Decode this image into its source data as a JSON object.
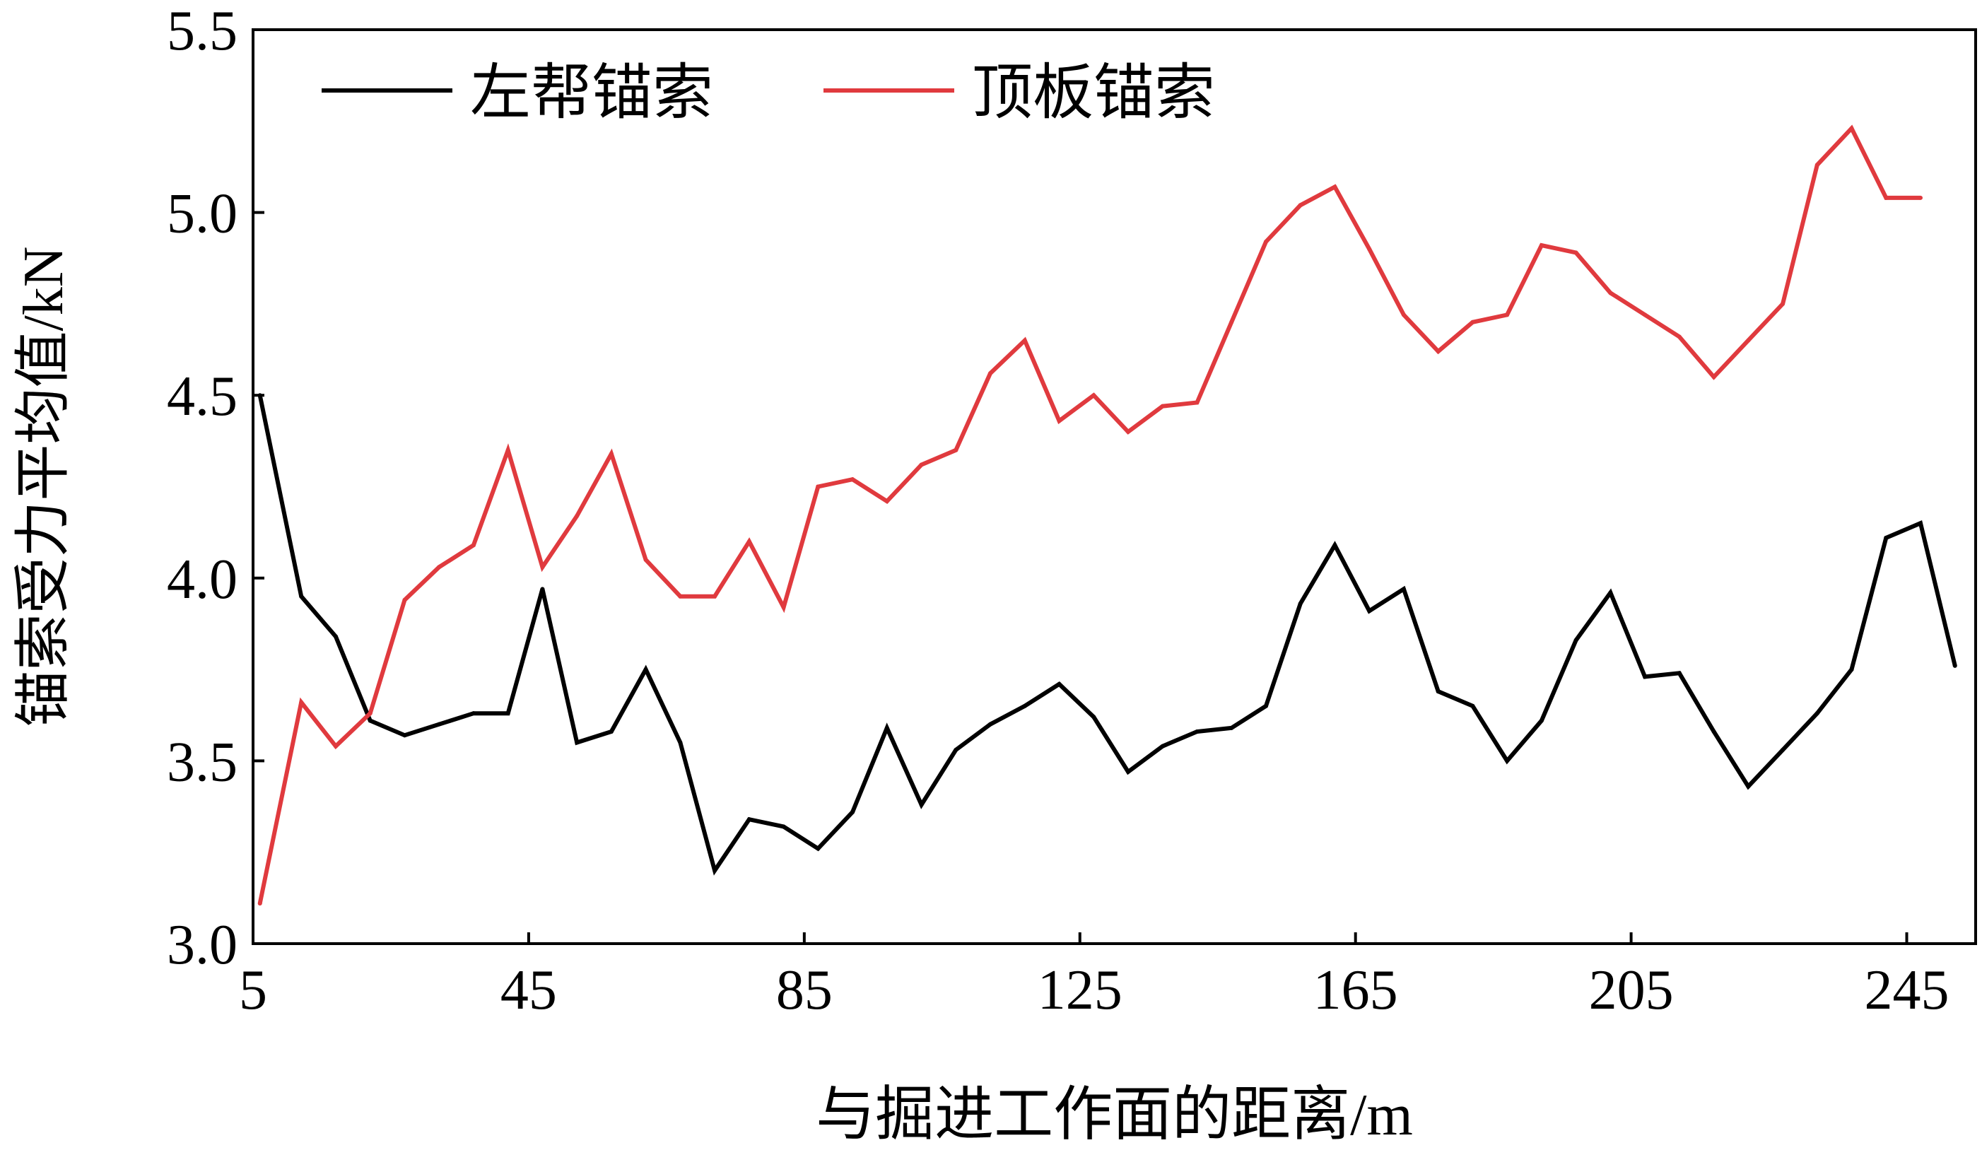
{
  "chart_data": {
    "type": "line",
    "xlabel": "与掘进工作面的距离/m",
    "ylabel": "锚索受力平均值/kN",
    "xlim": [
      5,
      255
    ],
    "ylim": [
      3.0,
      5.5
    ],
    "x_ticks": [
      5,
      45,
      85,
      125,
      165,
      205,
      245
    ],
    "x_tick_labels": [
      "5",
      "45",
      "85",
      "125",
      "165",
      "205",
      "245"
    ],
    "y_ticks": [
      3.0,
      3.5,
      4.0,
      4.5,
      5.0,
      5.5
    ],
    "y_tick_labels": [
      "3.0",
      "3.5",
      "4.0",
      "4.5",
      "5.0",
      "5.5"
    ],
    "grid": false,
    "legend_position": "top-left",
    "series": [
      {
        "name": "左帮锚索",
        "color": "#000000",
        "x": [
          6,
          12,
          17,
          22,
          27,
          32,
          37,
          42,
          47,
          52,
          57,
          62,
          67,
          72,
          77,
          82,
          87,
          92,
          97,
          102,
          107,
          112,
          117,
          122,
          127,
          132,
          137,
          142,
          147,
          152,
          157,
          162,
          167,
          172,
          177,
          182,
          187,
          192,
          197,
          202,
          207,
          212,
          217,
          222,
          227,
          232,
          237,
          242,
          247,
          252
        ],
        "values": [
          4.5,
          3.95,
          3.84,
          3.61,
          3.57,
          3.6,
          3.63,
          3.63,
          3.97,
          3.55,
          3.58,
          3.75,
          3.55,
          3.2,
          3.34,
          3.32,
          3.26,
          3.36,
          3.59,
          3.38,
          3.53,
          3.6,
          3.65,
          3.71,
          3.62,
          3.47,
          3.54,
          3.58,
          3.59,
          3.65,
          3.93,
          4.09,
          3.91,
          3.97,
          3.69,
          3.65,
          3.5,
          3.61,
          3.83,
          3.96,
          3.73,
          3.74,
          3.58,
          3.43,
          3.53,
          3.63,
          3.75,
          4.11,
          4.15,
          3.76
        ]
      },
      {
        "name": "顶板锚索",
        "color": "#E03A3E",
        "x": [
          6,
          12,
          17,
          22,
          27,
          32,
          37,
          42,
          47,
          52,
          57,
          62,
          67,
          72,
          77,
          82,
          87,
          92,
          97,
          102,
          107,
          112,
          117,
          122,
          127,
          132,
          137,
          142,
          147,
          152,
          157,
          162,
          167,
          172,
          177,
          182,
          187,
          192,
          197,
          202,
          207,
          212,
          217,
          222,
          227,
          232,
          237,
          242,
          247
        ],
        "values": [
          3.11,
          3.66,
          3.54,
          3.63,
          3.94,
          4.03,
          4.09,
          4.35,
          4.03,
          4.17,
          4.34,
          4.05,
          3.95,
          3.95,
          4.1,
          3.92,
          4.25,
          4.27,
          4.21,
          4.31,
          4.35,
          4.56,
          4.65,
          4.43,
          4.5,
          4.4,
          4.47,
          4.48,
          4.7,
          4.92,
          5.02,
          5.07,
          4.9,
          4.72,
          4.62,
          4.7,
          4.72,
          4.91,
          4.89,
          4.78,
          4.72,
          4.66,
          4.55,
          4.65,
          4.75,
          5.13,
          5.23,
          5.04,
          5.04
        ]
      }
    ]
  }
}
